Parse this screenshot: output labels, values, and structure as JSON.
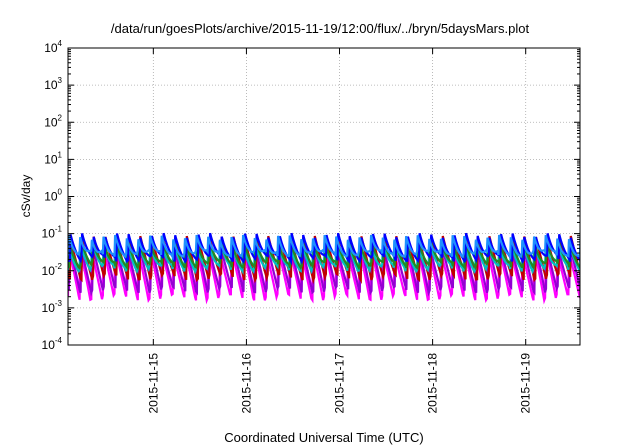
{
  "chart_data": {
    "type": "line",
    "title": "/data/run/goesPlots/archive/2015-11-19/12:00/flux/../bryn/5daysMars.plot",
    "xlabel": "Coordinated Universal Time (UTC)",
    "ylabel": "cSv/day",
    "y_scale": "log",
    "ylim": [
      0.0001,
      10000
    ],
    "xlim": [
      "2015-11-14T02:00",
      "2015-11-19T14:00"
    ],
    "grid": true,
    "y_ticks": [
      {
        "base": "10",
        "exp": "4",
        "value": 10000
      },
      {
        "base": "10",
        "exp": "3",
        "value": 1000
      },
      {
        "base": "10",
        "exp": "2",
        "value": 100
      },
      {
        "base": "10",
        "exp": "1",
        "value": 10
      },
      {
        "base": "10",
        "exp": "0",
        "value": 1
      },
      {
        "base": "10",
        "exp": "-1",
        "value": 0.1
      },
      {
        "base": "10",
        "exp": "-2",
        "value": 0.01
      },
      {
        "base": "10",
        "exp": "-3",
        "value": 0.001
      },
      {
        "base": "10",
        "exp": "-4",
        "value": 0.0001
      }
    ],
    "x_ticks": [
      "2015-11-15",
      "2015-11-16",
      "2015-11-17",
      "2015-11-18",
      "2015-11-19"
    ],
    "sawtooth_period_hours": 3,
    "series": [
      {
        "color": "#ff00ff",
        "peak": 0.035,
        "trough": 0.002
      },
      {
        "color": "#9400d3",
        "peak": 0.045,
        "trough": 0.0032
      },
      {
        "color": "#c00000",
        "peak": 0.075,
        "trough": 0.007
      },
      {
        "color": "#00c0c0",
        "peak": 0.055,
        "trough": 0.012
      },
      {
        "color": "#228b22",
        "peak": 0.06,
        "trough": 0.015
      },
      {
        "color": "#0000ff",
        "peak": 0.09,
        "trough": 0.022
      },
      {
        "color": "#1e90ff",
        "peak": 0.08,
        "trough": 0.03
      }
    ]
  }
}
